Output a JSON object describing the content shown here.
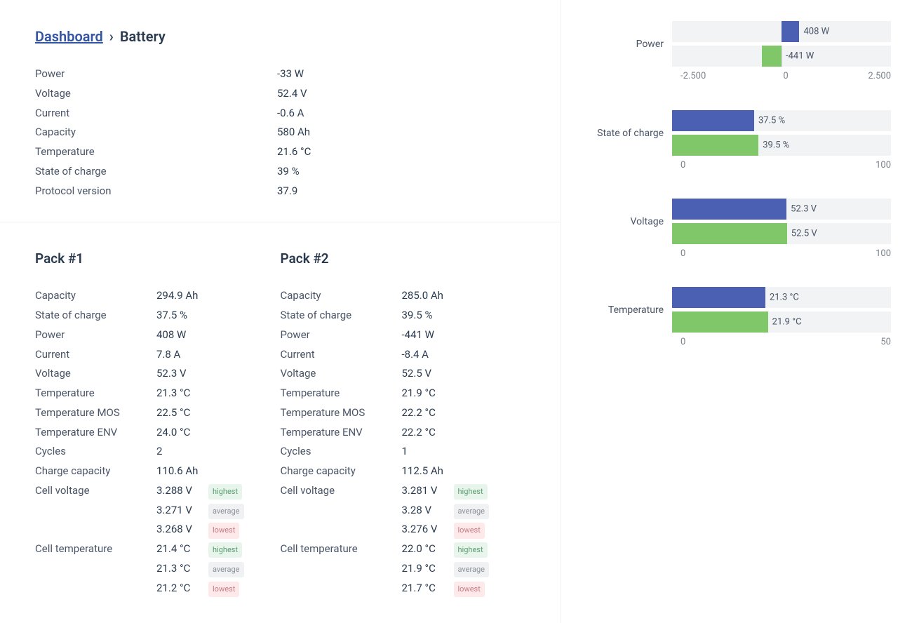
{
  "breadcrumb": {
    "link_label": "Dashboard",
    "separator": "›",
    "current": "Battery"
  },
  "summary": {
    "rows": [
      {
        "label": "Power",
        "value": "-33 W"
      },
      {
        "label": "Voltage",
        "value": "52.4 V"
      },
      {
        "label": "Current",
        "value": "-0.6 A"
      },
      {
        "label": "Capacity",
        "value": "580 Ah"
      },
      {
        "label": "Temperature",
        "value": "21.6 °C"
      },
      {
        "label": "State of charge",
        "value": "39 %"
      },
      {
        "label": "Protocol version",
        "value": "37.9"
      }
    ]
  },
  "packs": [
    {
      "title": "Pack #1",
      "rows": [
        {
          "label": "Capacity",
          "value": "294.9 Ah"
        },
        {
          "label": "State of charge",
          "value": "37.5 %"
        },
        {
          "label": "Power",
          "value": "408 W"
        },
        {
          "label": "Current",
          "value": "7.8 A"
        },
        {
          "label": "Voltage",
          "value": "52.3 V"
        },
        {
          "label": "Temperature",
          "value": "21.3 °C"
        },
        {
          "label": "Temperature MOS",
          "value": "22.5 °C"
        },
        {
          "label": "Temperature ENV",
          "value": "24.0 °C"
        },
        {
          "label": "Cycles",
          "value": "2"
        },
        {
          "label": "Charge capacity",
          "value": "110.6 Ah"
        }
      ],
      "cell_voltage": {
        "label": "Cell voltage",
        "highest": "3.288 V",
        "average": "3.271 V",
        "lowest": "3.268 V"
      },
      "cell_temperature": {
        "label": "Cell temperature",
        "highest": "21.4 °C",
        "average": "21.3 °C",
        "lowest": "21.2 °C"
      }
    },
    {
      "title": "Pack #2",
      "rows": [
        {
          "label": "Capacity",
          "value": "285.0 Ah"
        },
        {
          "label": "State of charge",
          "value": "39.5 %"
        },
        {
          "label": "Power",
          "value": "-441 W"
        },
        {
          "label": "Current",
          "value": "-8.4 A"
        },
        {
          "label": "Voltage",
          "value": "52.5 V"
        },
        {
          "label": "Temperature",
          "value": "21.9 °C"
        },
        {
          "label": "Temperature MOS",
          "value": "22.2 °C"
        },
        {
          "label": "Temperature ENV",
          "value": "22.2 °C"
        },
        {
          "label": "Cycles",
          "value": "1"
        },
        {
          "label": "Charge capacity",
          "value": "112.5 Ah"
        }
      ],
      "cell_voltage": {
        "label": "Cell voltage",
        "highest": "3.281 V",
        "average": "3.28 V",
        "lowest": "3.276 V"
      },
      "cell_temperature": {
        "label": "Cell temperature",
        "highest": "22.0 °C",
        "average": "21.9 °C",
        "lowest": "21.7 °C"
      }
    }
  ],
  "badges": {
    "highest": "highest",
    "average": "average",
    "lowest": "lowest"
  },
  "charts": {
    "colors": {
      "series1": "#4b5fb3",
      "series2": "#7fc769",
      "track": "#f2f3f5"
    },
    "power": {
      "label": "Power",
      "xmin": -2500,
      "xmax": 2500,
      "ticks": [
        "-2.500",
        "0",
        "2.500"
      ],
      "bars": [
        {
          "value": 408,
          "display": "408 W",
          "color": "#4b5fb3"
        },
        {
          "value": -441,
          "display": "-441 W",
          "color": "#7fc769"
        }
      ]
    },
    "soc": {
      "label": "State of charge",
      "xmin": 0,
      "xmax": 100,
      "ticks": [
        "0",
        "100"
      ],
      "bars": [
        {
          "value": 37.5,
          "display": "37.5 %",
          "color": "#4b5fb3"
        },
        {
          "value": 39.5,
          "display": "39.5 %",
          "color": "#7fc769"
        }
      ]
    },
    "voltage": {
      "label": "Voltage",
      "xmin": 0,
      "xmax": 100,
      "ticks": [
        "0",
        "100"
      ],
      "bars": [
        {
          "value": 52.3,
          "display": "52.3 V",
          "color": "#4b5fb3"
        },
        {
          "value": 52.5,
          "display": "52.5 V",
          "color": "#7fc769"
        }
      ]
    },
    "temperature": {
      "label": "Temperature",
      "xmin": 0,
      "xmax": 50,
      "ticks": [
        "0",
        "50"
      ],
      "bars": [
        {
          "value": 21.3,
          "display": "21.3 °C",
          "color": "#4b5fb3"
        },
        {
          "value": 21.9,
          "display": "21.9 °C",
          "color": "#7fc769"
        }
      ]
    }
  }
}
